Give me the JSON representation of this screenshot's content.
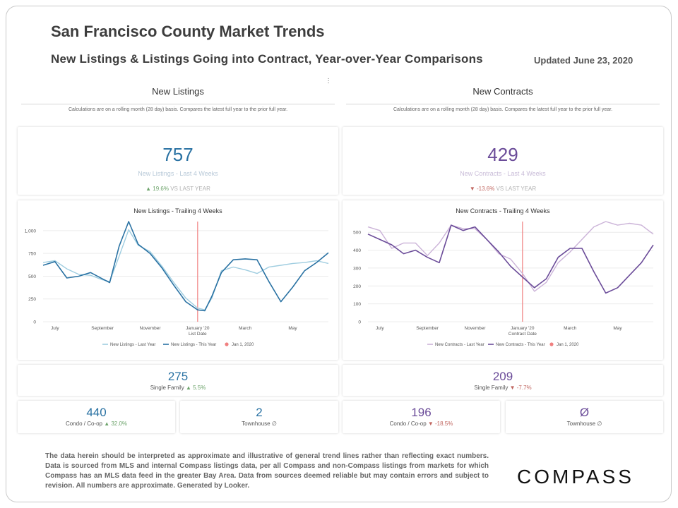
{
  "header": {
    "title": "San Francisco County Market Trends",
    "subtitle": "New Listings & Listings Going into Contract, Year-over-Year  Comparisons",
    "updated": "Updated June 23, 2020"
  },
  "panels": {
    "left": {
      "title": "New Listings",
      "note": "Calculations are on a rolling month (28 day) basis. Compares the latest full year to the prior full year.",
      "kpi_value": "757",
      "kpi_label": "New Listings - Last 4 Weeks",
      "kpi_delta": "▲ 19.6%",
      "kpi_delta_suffix": "VS LAST YEAR",
      "single_family_value": "275",
      "single_family_label": "Single Family",
      "single_family_delta": "▲ 5.5%",
      "condo_value": "440",
      "condo_label": "Condo / Co-op",
      "condo_delta": "▲ 32.0%",
      "townhouse_value": "2",
      "townhouse_label": "Townhouse ∅"
    },
    "right": {
      "title": "New Contracts",
      "note": "Calculations are on a rolling month (28 day) basis. Compares the latest full year to the prior full year.",
      "kpi_value": "429",
      "kpi_label": "New Contracts - Last 4 Weeks",
      "kpi_delta": "▼ -13.6%",
      "kpi_delta_suffix": "VS LAST YEAR",
      "single_family_value": "209",
      "single_family_label": "Single Family",
      "single_family_delta": "▼ -7.7%",
      "condo_value": "196",
      "condo_label": "Condo / Co-op",
      "condo_delta": "▼ -18.5%",
      "townhouse_value": "Ø",
      "townhouse_label": "Townhouse ∅"
    }
  },
  "footer": {
    "disclaimer": "The data herein should be interpreted as approximate and illustrative of general trend lines rather than reflecting exact numbers. Data is sourced from MLS and internal Compass listings data, per all Compass and non-Compass listings from markets for which Compass has an MLS data feed in the greater Bay Area. Data from sources deemed reliable but may contain errors and subject to revision. All numbers are approximate. Generated by Looker.",
    "logo": "COMPASS"
  },
  "colors": {
    "listings_this_year": "#2a72a3",
    "listings_last_year": "#9fcde0",
    "contracts_this_year": "#6b4c99",
    "contracts_last_year": "#cbb3d8",
    "marker": "#f08080"
  },
  "chart_data": [
    {
      "type": "line",
      "title": "New Listings - Trailing 4 Weeks",
      "xlabel": "List Date",
      "ylabel": "",
      "ylim": [
        0,
        1100
      ],
      "yticks": [
        0,
        250,
        500,
        750,
        1000
      ],
      "ytick_labels": [
        "0",
        "250",
        "500",
        "750",
        "1,000"
      ],
      "x_tick_labels": [
        "July",
        "September",
        "November",
        "January '20",
        "March",
        "May"
      ],
      "x_tick_positions": [
        0.5,
        2.5,
        4.5,
        6.5,
        8.5,
        10.5
      ],
      "xlim": [
        0,
        12
      ],
      "marker_label": "Jan 1, 2020",
      "marker_x": 6.5,
      "legend": [
        "New Listings - Last Year",
        "New Listings - This Year",
        "Jan 1, 2020"
      ],
      "series": [
        {
          "name": "New Listings - Last Year",
          "x": [
            0,
            0.5,
            1,
            1.5,
            2,
            2.5,
            2.8,
            3.2,
            3.6,
            4,
            4.5,
            5,
            5.5,
            6,
            6.5,
            6.8,
            7.1,
            7.5,
            8,
            8.5,
            9,
            9.5,
            10,
            10.5,
            11,
            11.5,
            12
          ],
          "y": [
            650,
            670,
            580,
            520,
            510,
            460,
            440,
            720,
            1010,
            840,
            770,
            610,
            430,
            260,
            150,
            130,
            260,
            560,
            600,
            570,
            530,
            600,
            620,
            640,
            650,
            670,
            640
          ]
        },
        {
          "name": "New Listings - This Year",
          "x": [
            0,
            0.5,
            1,
            1.5,
            2,
            2.5,
            2.8,
            3.2,
            3.6,
            4,
            4.5,
            5,
            5.5,
            6,
            6.5,
            6.8,
            7.1,
            7.5,
            8,
            8.5,
            9,
            9.5,
            10,
            10.5,
            11,
            11.5,
            12
          ],
          "y": [
            620,
            660,
            480,
            500,
            540,
            470,
            430,
            830,
            1100,
            850,
            750,
            590,
            400,
            220,
            130,
            120,
            280,
            540,
            680,
            690,
            680,
            440,
            220,
            380,
            560,
            650,
            757
          ]
        }
      ]
    },
    {
      "type": "line",
      "title": "New Contracts - Trailing 4 Weeks",
      "xlabel": "Contract Date",
      "ylabel": "",
      "ylim": [
        0,
        560
      ],
      "yticks": [
        0,
        100,
        200,
        300,
        400,
        500
      ],
      "ytick_labels": [
        "0",
        "100",
        "200",
        "300",
        "400",
        "500"
      ],
      "x_tick_labels": [
        "July",
        "September",
        "November",
        "January '20",
        "March",
        "May"
      ],
      "x_tick_positions": [
        0.5,
        2.5,
        4.5,
        6.5,
        8.5,
        10.5
      ],
      "xlim": [
        0,
        12
      ],
      "marker_label": "Jan 1, 2020",
      "marker_x": 6.5,
      "legend": [
        "New Contracts - Last Year",
        "New Contracts - This Year",
        "Jan 1, 2020"
      ],
      "series": [
        {
          "name": "New Contracts - Last Year",
          "x": [
            0,
            0.5,
            1,
            1.5,
            2,
            2.5,
            3,
            3.5,
            4,
            4.5,
            5,
            5.5,
            6,
            6.5,
            7,
            7.5,
            8,
            8.5,
            9,
            9.5,
            10,
            10.5,
            11,
            11.5,
            12
          ],
          "y": [
            530,
            510,
            410,
            440,
            440,
            370,
            440,
            540,
            520,
            520,
            460,
            380,
            350,
            270,
            170,
            220,
            330,
            390,
            460,
            530,
            560,
            540,
            550,
            540,
            490
          ]
        },
        {
          "name": "New Contracts - This Year",
          "x": [
            0,
            0.5,
            1,
            1.5,
            2,
            2.5,
            3,
            3.5,
            4,
            4.5,
            5,
            5.5,
            6,
            6.5,
            7,
            7.5,
            8,
            8.5,
            9,
            9.5,
            10,
            10.5,
            11,
            11.5,
            12
          ],
          "y": [
            490,
            460,
            430,
            380,
            400,
            360,
            330,
            540,
            510,
            530,
            460,
            390,
            310,
            250,
            190,
            240,
            360,
            410,
            410,
            280,
            160,
            190,
            260,
            330,
            429
          ]
        }
      ]
    }
  ]
}
